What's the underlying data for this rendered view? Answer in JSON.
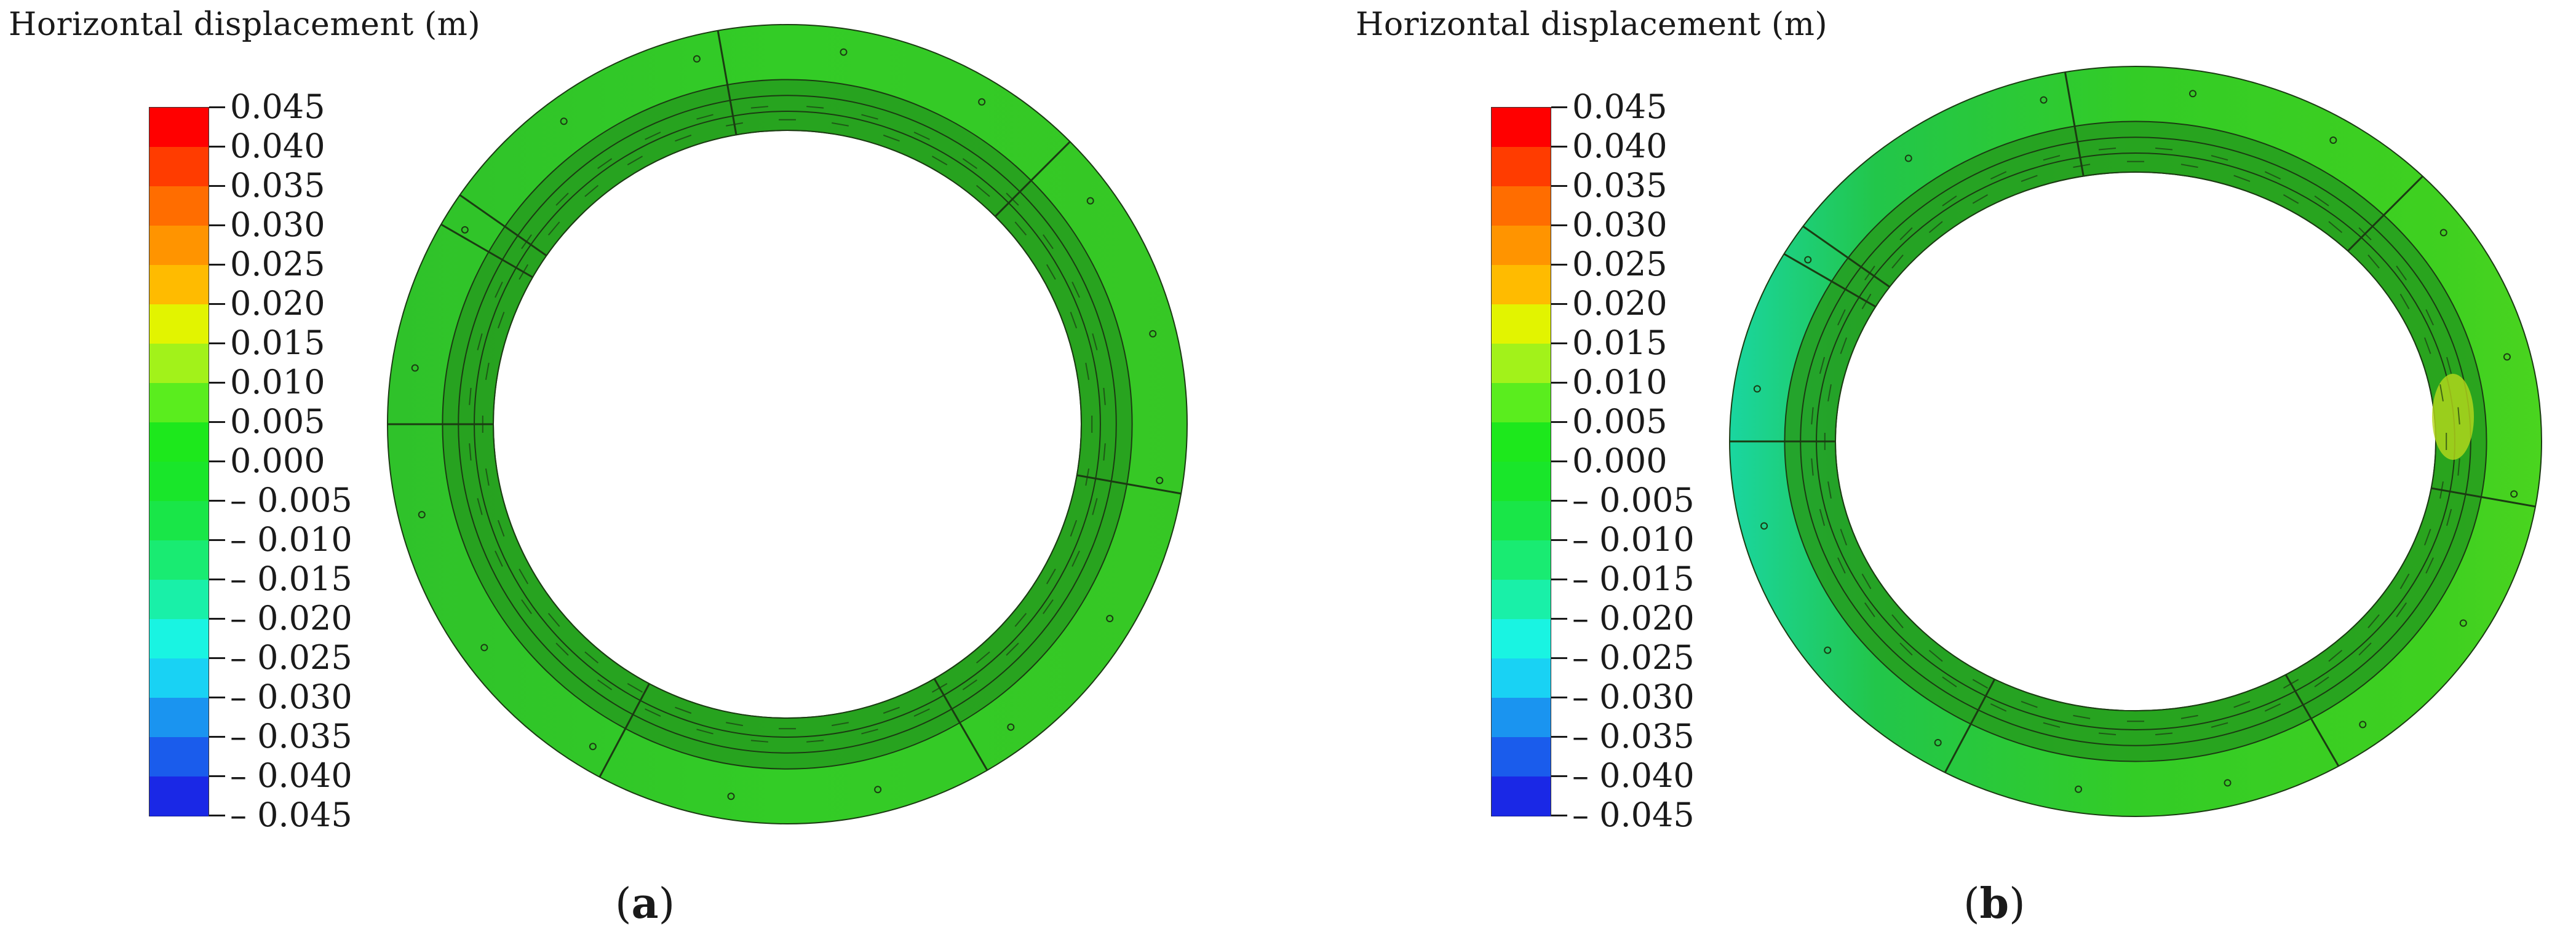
{
  "figure": {
    "colors": {
      "ring_outer": "#33cc26",
      "ring_inner": "#269c1f",
      "ring_mid": "#2fb523",
      "seg_line": "#1b3b12",
      "cyan_shade": "#1ad6a0",
      "yellow_shade": "#b6d81c"
    },
    "panels": [
      {
        "id": "a",
        "legend_title": "Horizontal displacement (m)",
        "caption_open": "(",
        "caption_letter": "a",
        "caption_close": ")",
        "scale": [
          {
            "label": "0.045",
            "color": "#ff0000"
          },
          {
            "label": "0.040",
            "color": "#ff3c00"
          },
          {
            "label": "0.035",
            "color": "#ff6d00"
          },
          {
            "label": "0.030",
            "color": "#ff9400"
          },
          {
            "label": "0.025",
            "color": "#ffbb00"
          },
          {
            "label": "0.020",
            "color": "#e2f400"
          },
          {
            "label": "0.015",
            "color": "#a2f21a"
          },
          {
            "label": "0.010",
            "color": "#5aed1e"
          },
          {
            "label": "0.005",
            "color": "#1de81c"
          },
          {
            "label": "0.000",
            "color": "#19e62a"
          },
          {
            "label": "– 0.005",
            "color": "#19e648"
          },
          {
            "label": "– 0.010",
            "color": "#19eb72"
          },
          {
            "label": "– 0.015",
            "color": "#19f0a8"
          },
          {
            "label": "– 0.020",
            "color": "#19f4e2"
          },
          {
            "label": "– 0.025",
            "color": "#19d2f4"
          },
          {
            "label": "– 0.030",
            "color": "#1a94f0"
          },
          {
            "label": "– 0.035",
            "color": "#1a5cec"
          },
          {
            "label": "– 0.040",
            "color": "#1a28e6"
          },
          {
            "label": "– 0.045",
            "color": "#0000e6"
          }
        ]
      },
      {
        "id": "b",
        "legend_title": "Horizontal displacement (m)",
        "caption_open": "(",
        "caption_letter": "b",
        "caption_close": ")",
        "scale": [
          {
            "label": "0.045",
            "color": "#ff0000"
          },
          {
            "label": "0.040",
            "color": "#ff3c00"
          },
          {
            "label": "0.035",
            "color": "#ff6d00"
          },
          {
            "label": "0.030",
            "color": "#ff9400"
          },
          {
            "label": "0.025",
            "color": "#ffbb00"
          },
          {
            "label": "0.020",
            "color": "#e2f400"
          },
          {
            "label": "0.015",
            "color": "#a2f21a"
          },
          {
            "label": "0.010",
            "color": "#5aed1e"
          },
          {
            "label": "0.005",
            "color": "#1de81c"
          },
          {
            "label": "0.000",
            "color": "#19e62a"
          },
          {
            "label": "– 0.005",
            "color": "#19e648"
          },
          {
            "label": "– 0.010",
            "color": "#19eb72"
          },
          {
            "label": "– 0.015",
            "color": "#19f0a8"
          },
          {
            "label": "– 0.020",
            "color": "#19f4e2"
          },
          {
            "label": "– 0.025",
            "color": "#19d2f4"
          },
          {
            "label": "– 0.030",
            "color": "#1a94f0"
          },
          {
            "label": "– 0.035",
            "color": "#1a5cec"
          },
          {
            "label": "– 0.040",
            "color": "#1a28e6"
          },
          {
            "label": "– 0.045",
            "color": "#0000e6"
          }
        ]
      }
    ]
  }
}
